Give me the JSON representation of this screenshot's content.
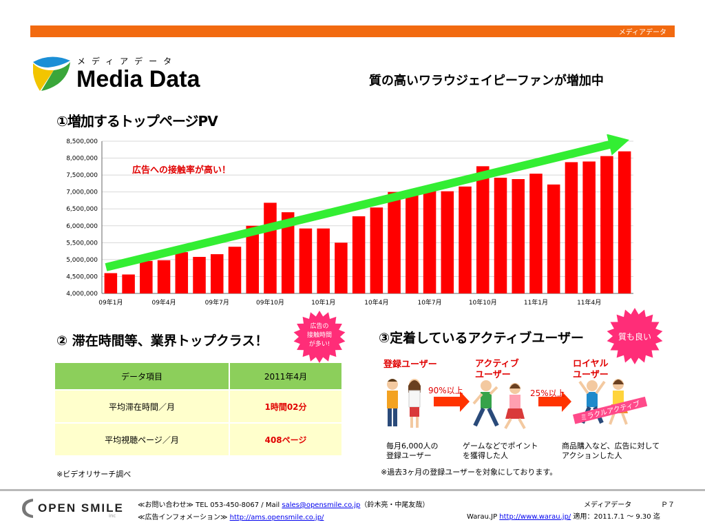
{
  "header": {
    "bar_label": "メディアデータ",
    "kana": "メディアデータ",
    "title": "Media Data",
    "headline": "質の高いワラウジェイピーファンが増加中"
  },
  "section1": {
    "title": "①増加するトップページPV",
    "note": "広告への接触率が高い！"
  },
  "chart_data": {
    "type": "bar",
    "title": "",
    "xlabel": "",
    "ylabel": "",
    "categories": [
      "09年1月",
      "09年2月",
      "09年3月",
      "09年4月",
      "09年5月",
      "09年6月",
      "09年7月",
      "09年8月",
      "09年9月",
      "09年10月",
      "09年11月",
      "09年12月",
      "10年1月",
      "10年2月",
      "10年3月",
      "10年4月",
      "10年5月",
      "10年6月",
      "10年7月",
      "10年8月",
      "10年9月",
      "10年10月",
      "10年11月",
      "10年12月",
      "11年1月",
      "11年2月",
      "11年3月",
      "11年4月",
      "11年5月",
      "11年6月"
    ],
    "tick_labels": [
      "09年1月",
      "09年4月",
      "09年7月",
      "09年10月",
      "10年1月",
      "10年4月",
      "10年7月",
      "10年10月",
      "11年1月",
      "11年4月"
    ],
    "tick_label_indices": [
      0,
      3,
      6,
      9,
      12,
      15,
      18,
      21,
      24,
      27
    ],
    "values": [
      4600000,
      4560000,
      4960000,
      4980000,
      5220000,
      5080000,
      5160000,
      5380000,
      6000000,
      6680000,
      6400000,
      5920000,
      5920000,
      5500000,
      6280000,
      6540000,
      7000000,
      6980000,
      7040000,
      7020000,
      7160000,
      7760000,
      7420000,
      7380000,
      7540000,
      7220000,
      7880000,
      7900000,
      8060000,
      8200000
    ],
    "ylim": [
      4000000,
      8500000
    ],
    "y_ticks": [
      "4,000,000",
      "4,500,000",
      "5,000,000",
      "5,500,000",
      "6,000,000",
      "6,500,000",
      "7,000,000",
      "7,500,000",
      "8,000,000",
      "8,500,000"
    ],
    "grid": true,
    "bar_color": "#ff0000",
    "arrow_color": "#33ee33"
  },
  "section2": {
    "title": "② 滞在時間等、業界トップクラス！",
    "badge": [
      "広告の",
      "接触時間",
      "が多い!"
    ],
    "table": {
      "header": [
        "データ項目",
        "2011年4月"
      ],
      "rows": [
        [
          "平均滞在時間／月",
          "1時間02分"
        ],
        [
          "平均視聴ページ／月",
          "408ページ"
        ]
      ]
    },
    "note": "※ビデオリサーチ調べ"
  },
  "section3": {
    "title": "③定着しているアクティブユーザー",
    "badge": "質も良い",
    "label_registered": "登録ユーザー",
    "label_active": [
      "アクティブ",
      "ユーザー"
    ],
    "label_royal": [
      "ロイヤル",
      "ユーザー"
    ],
    "pct1": "90%以上",
    "pct2": "25%以上",
    "mira_label": "ミラクルアクティブ",
    "desc_registered": [
      "毎月6,000人の",
      "登録ユーザー"
    ],
    "desc_active": [
      "ゲームなどでポイント",
      "を獲得した人"
    ],
    "desc_royal": [
      "商品購入など、広告に対して",
      "アクションした人"
    ],
    "note": "※過去3ヶ月の登録ユーザーを対象にしております。"
  },
  "footer": {
    "logo_text": "OPEN SMILE",
    "logo_inc": "inc",
    "contact_prefix": "≪お問い合わせ≫ TEL 053-450-8067 / Mail ",
    "contact_email": "sales@opensmile.co.jp",
    "contact_suffix": "（鈴木亮・中尾友哉）",
    "info_prefix": "≪広告インフォメーション≫ ",
    "info_url": "http://ams.opensmile.co.jp/",
    "media_label": "メディアデータ",
    "page": "Ｐ７",
    "site_prefix": "Warau.JP ",
    "site_url": "http://www.warau.jp/",
    "period": "適用：2011.7.1 〜 9.30 迄"
  },
  "colors": {
    "orange": "#f26a10",
    "red": "#e00000",
    "green_header": "#8ccf5b",
    "cell_bg": "#ffffcc",
    "badge_pink": "#ff2d78"
  }
}
